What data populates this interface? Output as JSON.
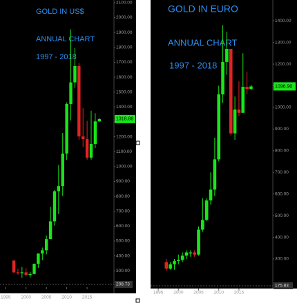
{
  "chart_data": [
    {
      "type": "candlestick",
      "annotations": [
        "GOLD IN US$",
        "ANNUAL CHART",
        "1997 - 2018"
      ],
      "x": [
        1997,
        1998,
        1999,
        2000,
        2001,
        2002,
        2003,
        2004,
        2005,
        2006,
        2007,
        2008,
        2009,
        2010,
        2011,
        2012,
        2013,
        2014,
        2015,
        2016,
        2017,
        2018
      ],
      "open": [
        369,
        290,
        288,
        290,
        273,
        279,
        347,
        416,
        438,
        513,
        632,
        834,
        869,
        1087,
        1420,
        1565,
        1675,
        1202,
        1184,
        1060,
        1152,
        1303
      ],
      "high": [
        369,
        313,
        326,
        317,
        293,
        349,
        417,
        456,
        537,
        730,
        842,
        1011,
        1226,
        1431,
        1921,
        1796,
        1695,
        1392,
        1307,
        1375,
        1358,
        1325
      ],
      "low": [
        283,
        273,
        252,
        263,
        255,
        277,
        320,
        371,
        410,
        520,
        603,
        681,
        802,
        1044,
        1309,
        1527,
        1180,
        1131,
        1046,
        1046,
        1124,
        1300
      ],
      "close": [
        290,
        288,
        290,
        273,
        279,
        347,
        416,
        438,
        513,
        632,
        834,
        869,
        1087,
        1420,
        1565,
        1675,
        1202,
        1184,
        1060,
        1152,
        1303,
        1318.88
      ],
      "up_color": "#19e619",
      "down_color": "#e02424",
      "last_price": 1318.88,
      "bottom_value": 208.73,
      "xlim": [
        1993.6,
        2021.6
      ],
      "xticks": [
        1995,
        2000,
        2005,
        2010,
        2015
      ],
      "ylim": [
        208.73,
        2118
      ],
      "yticks": [
        {
          "value": 300,
          "label": "300.00"
        },
        {
          "value": 400,
          "label": "400.00"
        },
        {
          "value": 500,
          "label": "500.00"
        },
        {
          "value": 600,
          "label": "600.00"
        },
        {
          "value": 700,
          "label": "700.00"
        },
        {
          "value": 800,
          "label": "800.00"
        },
        {
          "value": 900,
          "label": "900.00"
        },
        {
          "value": 1000,
          "label": "1000.00"
        },
        {
          "value": 1100,
          "label": "1100.00"
        },
        {
          "value": 1200,
          "label": "1200.00"
        },
        {
          "value": 1300,
          "label": "1300.00"
        },
        {
          "value": 1400,
          "label": "1400.00"
        },
        {
          "value": 1500,
          "label": "1500.00"
        },
        {
          "value": 1600,
          "label": "1600.00"
        },
        {
          "value": 1700,
          "label": "1700.00"
        },
        {
          "value": 1800,
          "label": "1800.00"
        },
        {
          "value": 1900,
          "label": "1900.00"
        },
        {
          "value": 2000,
          "label": "2000.00"
        },
        {
          "value": 2100,
          "label": "2100.00"
        }
      ]
    },
    {
      "type": "candlestick",
      "annotations": [
        "GOLD IN EURO",
        "ANNUAL CHART",
        "1997 - 2018"
      ],
      "x": [
        1997,
        1998,
        1999,
        2000,
        2001,
        2002,
        2003,
        2004,
        2005,
        2006,
        2007,
        2008,
        2009,
        2010,
        2011,
        2012,
        2013,
        2014,
        2015,
        2016,
        2017,
        2018
      ],
      "open": [
        285,
        255,
        275,
        290,
        295,
        315,
        330,
        330,
        320,
        435,
        480,
        570,
        620,
        760,
        1060,
        1210,
        1270,
        880,
        990,
        975,
        1095,
        1085
      ],
      "high": [
        300,
        285,
        300,
        320,
        330,
        340,
        340,
        340,
        450,
        580,
        580,
        700,
        860,
        1100,
        1380,
        1350,
        1270,
        1050,
        1120,
        1250,
        1165,
        1105
      ],
      "low": [
        245,
        250,
        250,
        275,
        285,
        300,
        310,
        310,
        315,
        425,
        475,
        550,
        590,
        750,
        1020,
        1150,
        870,
        850,
        960,
        975,
        1060,
        1080
      ],
      "close": [
        255,
        275,
        290,
        295,
        315,
        330,
        330,
        320,
        435,
        480,
        570,
        620,
        760,
        1060,
        1210,
        1270,
        880,
        990,
        975,
        1095,
        1085,
        1096.9
      ],
      "up_color": "#19e619",
      "down_color": "#e02424",
      "last_price": {
        "value": 1096.9,
        "label": "1096.90"
      },
      "bottom_value": 175.83,
      "xlim": [
        1993.1,
        2023.4
      ],
      "xticks": [
        1995,
        2000,
        2005,
        2010,
        2015
      ],
      "ylim": [
        175.83,
        1496
      ],
      "yticks": [
        {
          "value": 300,
          "label": "300.00"
        },
        {
          "value": 400,
          "label": "400.00"
        },
        {
          "value": 500,
          "label": "500.00"
        },
        {
          "value": 600,
          "label": "600.00"
        },
        {
          "value": 700,
          "label": "700.00"
        },
        {
          "value": 800,
          "label": "800.00"
        },
        {
          "value": 900,
          "label": "900.00"
        },
        {
          "value": 1000,
          "label": "1000.00"
        },
        {
          "value": 1100,
          "label": "1100.00"
        },
        {
          "value": 1200,
          "label": "1200.00"
        },
        {
          "value": 1300,
          "label": "1300.00"
        },
        {
          "value": 1400,
          "label": "1400.00"
        }
      ]
    }
  ]
}
